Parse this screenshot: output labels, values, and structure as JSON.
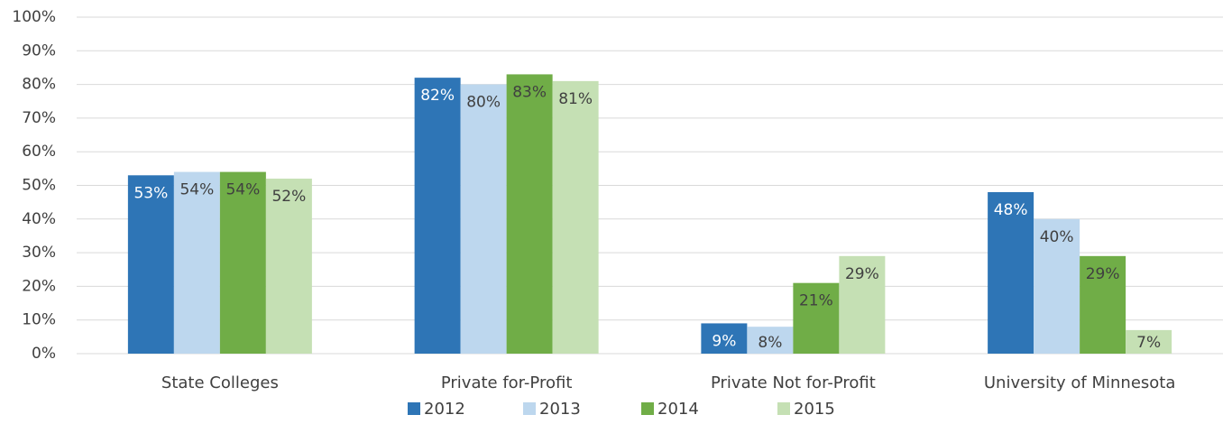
{
  "chart_data": {
    "type": "bar",
    "categories": [
      "State Colleges",
      "Private for-Profit",
      "Private Not for-Profit",
      "University of Minnesota"
    ],
    "series": [
      {
        "name": "2012",
        "color": "#2e75b6",
        "values": [
          53,
          82,
          9,
          48
        ],
        "value_labels": [
          "53%",
          "82%",
          "9%",
          "48%"
        ]
      },
      {
        "name": "2013",
        "color": "#bdd7ee",
        "values": [
          54,
          80,
          8,
          40
        ],
        "value_labels": [
          "54%",
          "80%",
          "8%",
          "40%"
        ]
      },
      {
        "name": "2014",
        "color": "#70ad47",
        "values": [
          54,
          83,
          21,
          29
        ],
        "value_labels": [
          "54%",
          "83%",
          "21%",
          "29%"
        ]
      },
      {
        "name": "2015",
        "color": "#c5e0b4",
        "values": [
          52,
          81,
          29,
          7
        ],
        "value_labels": [
          "52%",
          "81%",
          "29%",
          "7%"
        ]
      }
    ],
    "ylim": [
      0,
      100
    ],
    "yticks": [
      {
        "value": 0,
        "label": "0%"
      },
      {
        "value": 10,
        "label": "10%"
      },
      {
        "value": 20,
        "label": "20%"
      },
      {
        "value": 30,
        "label": "30%"
      },
      {
        "value": 40,
        "label": "40%"
      },
      {
        "value": 50,
        "label": "50%"
      },
      {
        "value": 60,
        "label": "60%"
      },
      {
        "value": 70,
        "label": "70%"
      },
      {
        "value": 80,
        "label": "80%"
      },
      {
        "value": 90,
        "label": "90%"
      },
      {
        "value": 100,
        "label": "100%"
      }
    ],
    "grid": true,
    "legend": "bottom"
  }
}
